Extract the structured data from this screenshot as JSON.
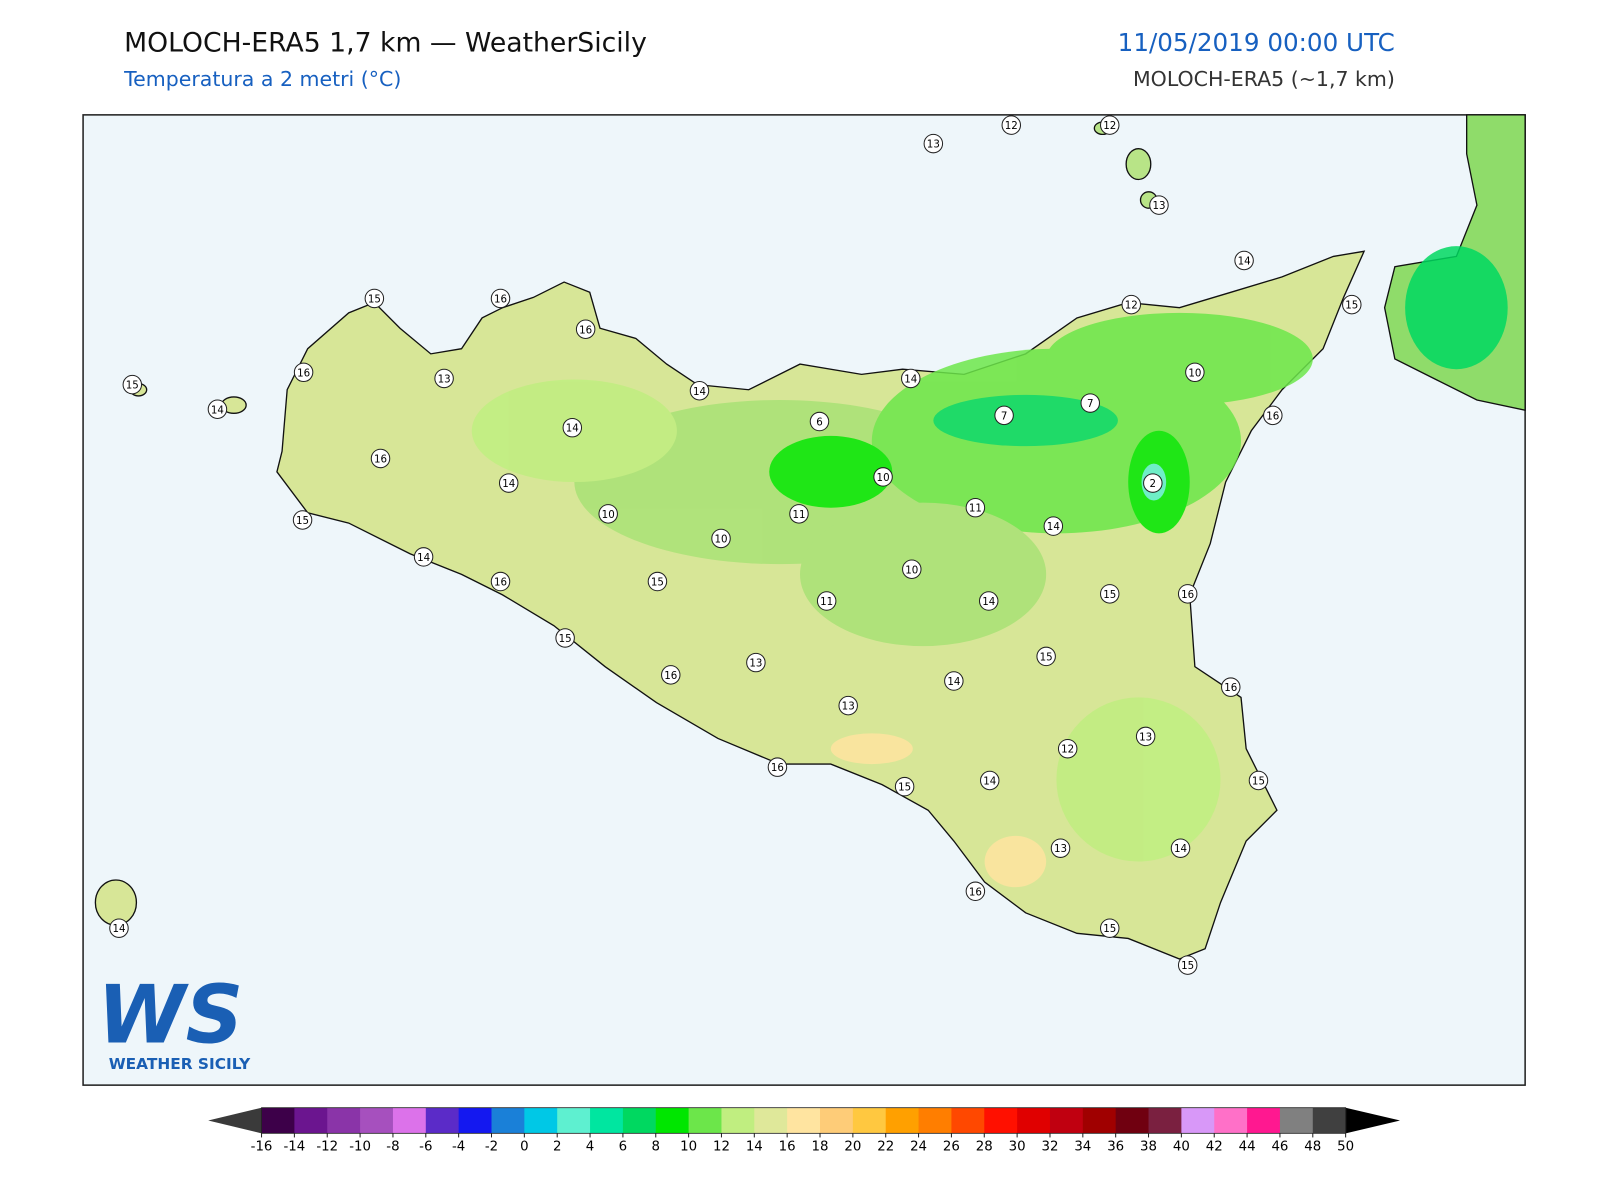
{
  "header": {
    "title": "MOLOCH-ERA5 1,7 km — WeatherSicily",
    "subtitle": "Temperatura a 2 metri (°C)",
    "datetime": "11/05/2019 00:00 UTC",
    "model": "MOLOCH-ERA5 (~1,7 km)"
  },
  "stations": [
    13,
    12,
    12,
    13,
    14,
    12,
    15,
    15,
    16,
    16,
    16,
    13,
    15,
    14,
    14,
    14,
    10,
    14,
    6,
    7,
    7,
    16,
    16,
    14,
    10,
    2,
    10,
    11,
    11,
    10,
    14,
    15,
    14,
    16,
    15,
    10,
    11,
    14,
    15,
    16,
    15,
    15,
    13,
    16,
    14,
    16,
    13,
    13,
    12,
    16,
    15,
    14,
    15,
    13,
    14,
    16,
    15,
    15,
    14
  ],
  "colorbar": {
    "ticks": [
      -16,
      -14,
      -12,
      -10,
      -8,
      -6,
      -4,
      -2,
      0,
      2,
      4,
      6,
      8,
      10,
      12,
      14,
      16,
      18,
      20,
      22,
      24,
      26,
      28,
      30,
      32,
      34,
      36,
      38,
      40,
      42,
      44,
      46,
      48,
      50
    ],
    "colors": [
      "#3d0049",
      "#6b158f",
      "#8a34a8",
      "#a650be",
      "#dc72ea",
      "#5b2bc8",
      "#1418f0",
      "#1a80d8",
      "#00c8e6",
      "#5ef0d0",
      "#00e6a0",
      "#00d860",
      "#00e600",
      "#6ce64a",
      "#c0ee80",
      "#dfe89a",
      "#ffe4a0",
      "#fecc78",
      "#ffc840",
      "#ffa000",
      "#ff7e00",
      "#ff4800",
      "#ff1000",
      "#e00000",
      "#c00010",
      "#a00000",
      "#700010",
      "#7a2040",
      "#d898f8",
      "#ff70c8",
      "#ff1890",
      "#808080",
      "#404040"
    ],
    "under": "#3a3a3a",
    "over": "#000000"
  },
  "logo": {
    "mark": "WS",
    "text": "WEATHER SICILY"
  }
}
